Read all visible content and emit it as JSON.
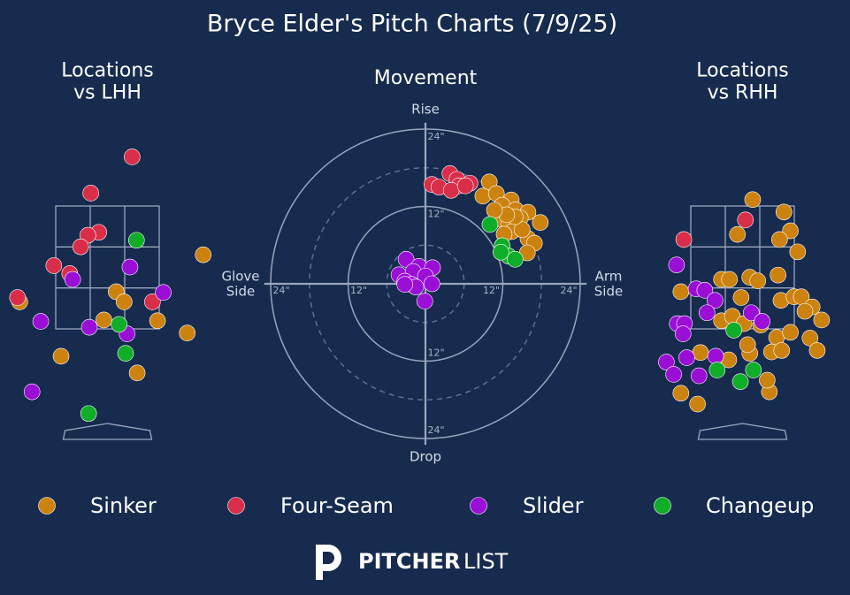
{
  "title": "Bryce Elder's Pitch Charts (7/9/25)",
  "brand": [
    "PITCHER",
    "LIST"
  ],
  "chart_data": [
    {
      "type": "scatter",
      "title": "Locations\nvs LHH",
      "xlim": [
        -1.5,
        1.5
      ],
      "ylim": [
        0,
        5
      ],
      "series": [
        {
          "name": "Sinker",
          "color": "#cc820e",
          "x": [
            1.32,
            0.12,
            0.23,
            -1.21,
            -0.05,
            0.69,
            1.1,
            -0.64,
            0.41
          ],
          "y": [
            2.62,
            2.11,
            1.97,
            1.97,
            1.72,
            1.71,
            1.54,
            1.22,
            0.99
          ]
        },
        {
          "name": "Four-Seam",
          "color": "#d92e4a",
          "x": [
            0.34,
            -0.23,
            -0.12,
            -0.27,
            -0.37,
            -0.74,
            -0.52,
            0.62,
            -1.24
          ],
          "y": [
            3.97,
            3.47,
            2.93,
            2.89,
            2.73,
            2.47,
            2.36,
            1.97,
            2.03
          ]
        },
        {
          "name": "Slider",
          "color": "#9a0ed6",
          "x": [
            0.31,
            -0.48,
            0.77,
            -0.92,
            -0.25,
            0.27,
            -1.04
          ],
          "y": [
            2.45,
            2.28,
            2.1,
            1.7,
            1.62,
            1.53,
            0.73
          ]
        },
        {
          "name": "Changeup",
          "color": "#10ad28",
          "x": [
            0.4,
            0.16,
            0.25,
            -0.26
          ],
          "y": [
            2.82,
            1.66,
            1.26,
            0.43
          ]
        }
      ]
    },
    {
      "type": "polar",
      "title": "Movement",
      "xlim": [
        -25,
        25
      ],
      "ylim": [
        -25,
        25
      ],
      "labels": {
        "top": "Rise",
        "bottom": "Drop",
        "left": "Glove\nSide",
        "right": "Arm\nSide"
      },
      "rticks": [
        {
          "value": 12,
          "label": "12\""
        },
        {
          "value": 24,
          "label": "24\""
        }
      ],
      "rminor": [
        6,
        18
      ],
      "series": [
        {
          "name": "Sinker",
          "color": "#cc820e",
          "x": [
            9.9,
            8.9,
            11.0,
            13.3,
            11.9,
            14.0,
            15.9,
            11.7,
            12.9,
            14.7,
            17.8,
            13.4,
            15.9,
            16.9,
            15.8,
            15.0,
            13.9,
            12.2,
            12.6,
            10.7
          ],
          "y": [
            15.8,
            13.6,
            14.0,
            13.0,
            12.2,
            11.5,
            11.1,
            10.0,
            9.3,
            10.2,
            9.5,
            8.1,
            7.0,
            6.3,
            4.8,
            8.4,
            10.4,
            7.7,
            10.7,
            11.4
          ]
        },
        {
          "name": "Four-Seam",
          "color": "#d92e4a",
          "x": [
            3.8,
            4.9,
            6.9,
            1.0,
            2.1,
            5.2,
            4.0,
            6.2
          ],
          "y": [
            17.1,
            16.2,
            15.6,
            15.4,
            15.0,
            15.2,
            14.5,
            15.2
          ]
        },
        {
          "name": "Slider",
          "color": "#9a0ed6",
          "x": [
            -3.0,
            -1.0,
            1.1,
            -4.1,
            -1.9,
            0.0,
            -3.2,
            -2.2,
            1.0,
            -1.5,
            -3.2,
            -0.1
          ],
          "y": [
            3.8,
            2.7,
            2.5,
            1.4,
            1.9,
            1.2,
            0.4,
            -0.1,
            0.0,
            -0.5,
            -0.1,
            -2.7
          ]
        },
        {
          "name": "Changeup",
          "color": "#10ad28",
          "x": [
            10.0,
            11.9,
            12.9,
            13.9,
            11.7
          ],
          "y": [
            9.2,
            5.9,
            4.3,
            3.8,
            4.9
          ]
        }
      ]
    },
    {
      "type": "scatter",
      "title": "Locations\nvs RHH",
      "xlim": [
        -1.5,
        1.5
      ],
      "ylim": [
        0,
        5
      ],
      "series": [
        {
          "name": "Sinker",
          "color": "#cc820e",
          "x": [
            0.14,
            0.57,
            -0.07,
            0.66,
            0.51,
            0.76,
            -0.29,
            -0.18,
            0.1,
            0.21,
            0.49,
            -0.85,
            -0.02,
            0.53,
            0.71,
            0.81,
            0.96,
            0.86,
            1.09,
            -0.29,
            -0.14,
            0.02,
            0.25,
            0.47,
            0.66,
            0.93,
            1.03,
            0.4,
            0.54,
            0.1,
            -0.19,
            -0.58,
            0.07,
            -0.85,
            -0.62,
            0.37,
            0.34
          ],
          "y": [
            3.38,
            3.21,
            2.9,
            2.95,
            2.83,
            2.66,
            2.28,
            2.28,
            2.31,
            2.26,
            2.34,
            2.11,
            2.03,
            1.99,
            2.04,
            2.04,
            1.9,
            1.84,
            1.72,
            1.71,
            1.77,
            1.67,
            1.65,
            1.48,
            1.55,
            1.47,
            1.3,
            1.28,
            1.3,
            1.26,
            1.17,
            1.27,
            1.38,
            0.71,
            0.56,
            0.73,
            0.89
          ]
        },
        {
          "name": "Four-Seam",
          "color": "#d92e4a",
          "x": [
            0.04,
            -0.81
          ],
          "y": [
            3.1,
            2.83
          ]
        },
        {
          "name": "Slider",
          "color": "#9a0ed6",
          "x": [
            -0.91,
            -0.64,
            -0.52,
            -0.38,
            -0.49,
            -0.9,
            -0.8,
            -0.82,
            0.12,
            0.27,
            -1.05,
            -0.77,
            -0.95,
            -0.6,
            -0.37
          ],
          "y": [
            2.48,
            2.15,
            2.13,
            1.99,
            1.82,
            1.67,
            1.67,
            1.53,
            1.82,
            1.7,
            1.14,
            1.2,
            0.97,
            0.95,
            1.22
          ]
        },
        {
          "name": "Changeup",
          "color": "#10ad28",
          "x": [
            -0.12,
            -0.35,
            -0.03,
            0.15
          ],
          "y": [
            1.58,
            1.03,
            0.87,
            1.03
          ]
        }
      ]
    }
  ]
}
